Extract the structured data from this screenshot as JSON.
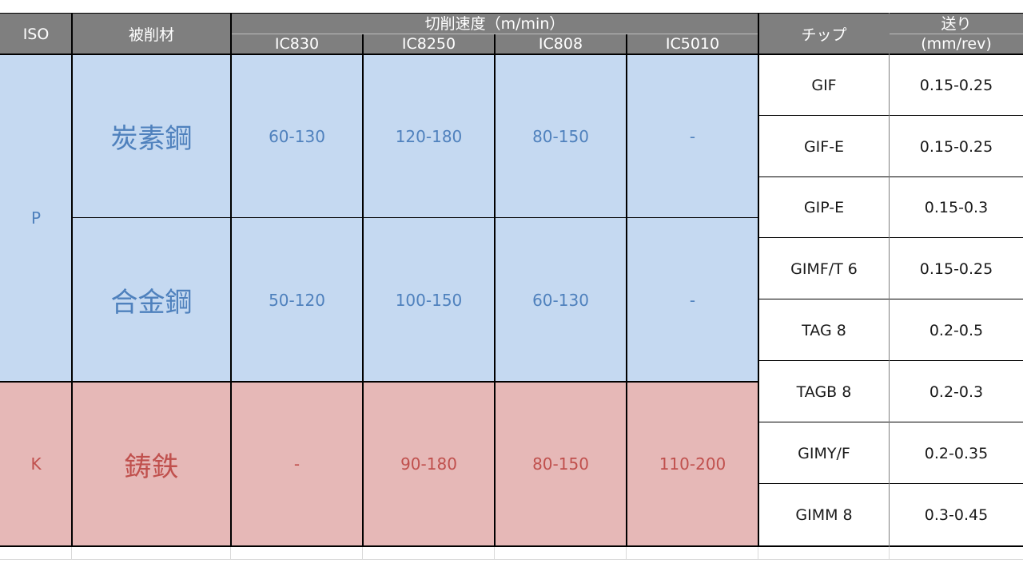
{
  "header": {
    "iso": "ISO",
    "material": "被削材",
    "speed": "切削速度（m/min）",
    "grades": [
      "IC830",
      "IC8250",
      "IC808",
      "IC5010"
    ],
    "chip": "チップ",
    "feed_top": "送り",
    "feed_bottom": "(mm/rev)"
  },
  "groups": [
    {
      "iso": "P",
      "color": "#c5d9f1",
      "text_color": "#4f81bd"
    },
    {
      "iso": "K",
      "color": "#e6b8b7",
      "text_color": "#c0504d"
    }
  ],
  "materials": [
    {
      "name": "炭素鋼",
      "speeds": [
        "60-130",
        "120-180",
        "80-150",
        "-"
      ]
    },
    {
      "name": "合金鋼",
      "speeds": [
        "50-120",
        "100-150",
        "60-130",
        "-"
      ]
    },
    {
      "name": "鋳鉄",
      "speeds": [
        "-",
        "90-180",
        "80-150",
        "110-200"
      ]
    }
  ],
  "chips": [
    {
      "chip": "GIF",
      "feed": "0.15-0.25"
    },
    {
      "chip": "GIF-E",
      "feed": "0.15-0.25"
    },
    {
      "chip": "GIP-E",
      "feed": "0.15-0.3"
    },
    {
      "chip": "GIMF/T 6",
      "feed": "0.15-0.25"
    },
    {
      "chip": "TAG 8",
      "feed": "0.2-0.5"
    },
    {
      "chip": "TAGB 8",
      "feed": "0.2-0.3"
    },
    {
      "chip": "GIMY/F",
      "feed": "0.2-0.35"
    },
    {
      "chip": "GIMM 8",
      "feed": "0.3-0.45"
    }
  ]
}
